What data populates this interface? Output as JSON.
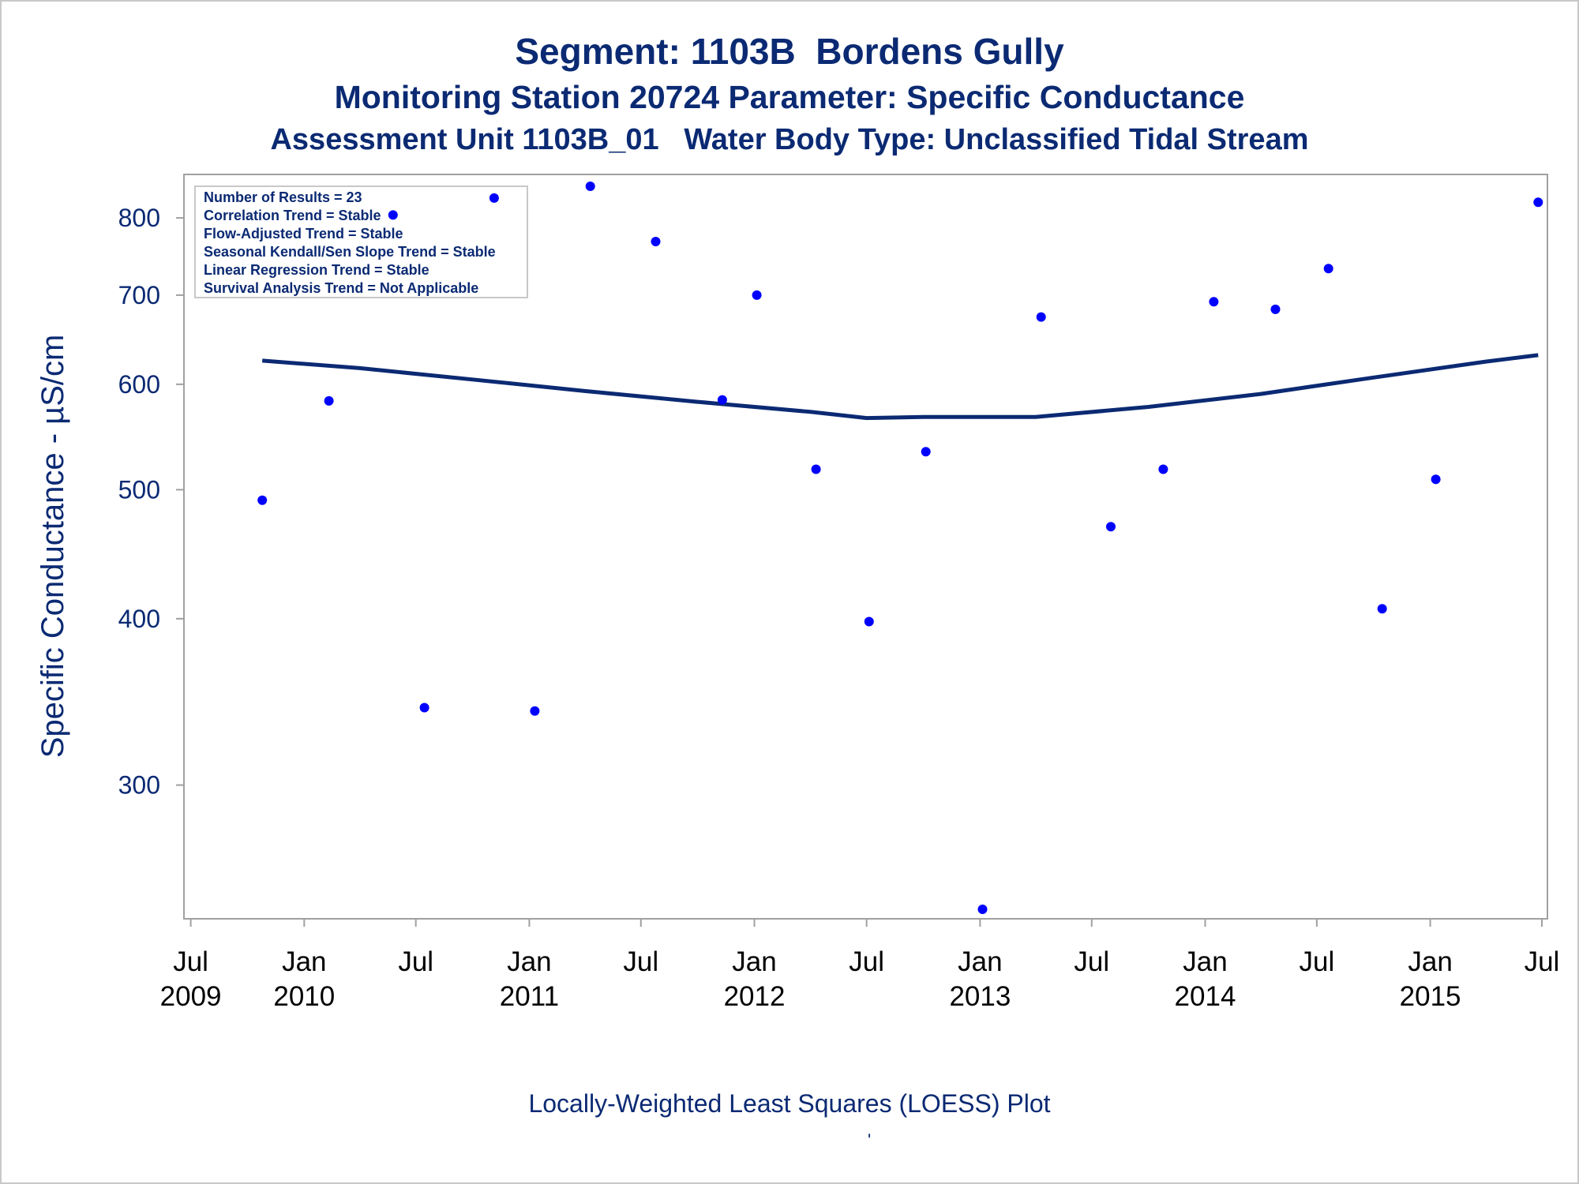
{
  "titles": {
    "line1": "Segment: 1103B  Bordens Gully",
    "line2": "Monitoring Station 20724 Parameter: Specific Conductance",
    "line3": "Assessment Unit 1103B_01   Water Body Type: Unclassified Tidal Stream"
  },
  "footer": "Locally-Weighted Least Squares (LOESS) Plot",
  "footer_mark": "'",
  "stats_box": [
    "Number of Results = 23",
    "Correlation Trend = Stable",
    "Flow-Adjusted Trend = Stable",
    "Seasonal Kendall/Sen Slope Trend = Stable",
    "Linear Regression Trend = Stable",
    "Survival Analysis Trend = Not Applicable"
  ],
  "colors": {
    "text": "#0b2a73",
    "points": "#0000ff",
    "loess": "#0b2a73",
    "axis": "#a0a0a0"
  },
  "chart_data": {
    "type": "scatter",
    "ylabel": "Specific Conductance -  µS/cm",
    "xlabel": "",
    "y_scale": "log",
    "ylim": [
      242,
      845
    ],
    "xlim": [
      "2009-06-20",
      "2015-07-10"
    ],
    "y_ticks": [
      300,
      400,
      500,
      600,
      700,
      800
    ],
    "x_ticks": [
      {
        "date": "2009-07-01",
        "label1": "Jul",
        "label2": "2009"
      },
      {
        "date": "2010-01-01",
        "label1": "Jan",
        "label2": "2010"
      },
      {
        "date": "2010-07-01",
        "label1": "Jul",
        "label2": ""
      },
      {
        "date": "2011-01-01",
        "label1": "Jan",
        "label2": "2011"
      },
      {
        "date": "2011-07-01",
        "label1": "Jul",
        "label2": ""
      },
      {
        "date": "2012-01-01",
        "label1": "Jan",
        "label2": "2012"
      },
      {
        "date": "2012-07-01",
        "label1": "Jul",
        "label2": ""
      },
      {
        "date": "2013-01-01",
        "label1": "Jan",
        "label2": "2013"
      },
      {
        "date": "2013-07-01",
        "label1": "Jul",
        "label2": ""
      },
      {
        "date": "2014-01-01",
        "label1": "Jan",
        "label2": "2014"
      },
      {
        "date": "2014-07-01",
        "label1": "Jul",
        "label2": ""
      },
      {
        "date": "2015-01-01",
        "label1": "Jan",
        "label2": "2015"
      },
      {
        "date": "2015-07-01",
        "label1": "Jul",
        "label2": ""
      }
    ],
    "series": [
      {
        "type": "scatter",
        "points": [
          {
            "x": "2009-10-25",
            "y": 491
          },
          {
            "x": "2010-02-10",
            "y": 583
          },
          {
            "x": "2010-05-25",
            "y": 804
          },
          {
            "x": "2010-07-15",
            "y": 343
          },
          {
            "x": "2010-11-05",
            "y": 828
          },
          {
            "x": "2011-01-10",
            "y": 341
          },
          {
            "x": "2011-04-10",
            "y": 845
          },
          {
            "x": "2011-07-25",
            "y": 768
          },
          {
            "x": "2011-11-10",
            "y": 584
          },
          {
            "x": "2012-01-05",
            "y": 700
          },
          {
            "x": "2012-04-10",
            "y": 518
          },
          {
            "x": "2012-07-05",
            "y": 398
          },
          {
            "x": "2012-10-05",
            "y": 534
          },
          {
            "x": "2013-01-05",
            "y": 242
          },
          {
            "x": "2013-04-10",
            "y": 674
          },
          {
            "x": "2013-08-01",
            "y": 469
          },
          {
            "x": "2013-10-25",
            "y": 518
          },
          {
            "x": "2014-01-15",
            "y": 692
          },
          {
            "x": "2014-04-25",
            "y": 683
          },
          {
            "x": "2014-07-20",
            "y": 733
          },
          {
            "x": "2014-10-15",
            "y": 407
          },
          {
            "x": "2015-01-10",
            "y": 509
          },
          {
            "x": "2015-06-25",
            "y": 822
          }
        ]
      },
      {
        "type": "line",
        "points": [
          {
            "x": "2009-10-25",
            "y": 625
          },
          {
            "x": "2010-04-01",
            "y": 617
          },
          {
            "x": "2010-10-01",
            "y": 605
          },
          {
            "x": "2011-04-01",
            "y": 593
          },
          {
            "x": "2011-10-01",
            "y": 582
          },
          {
            "x": "2012-04-01",
            "y": 572
          },
          {
            "x": "2012-07-01",
            "y": 566
          },
          {
            "x": "2012-10-01",
            "y": 567
          },
          {
            "x": "2013-04-01",
            "y": 567
          },
          {
            "x": "2013-10-01",
            "y": 577
          },
          {
            "x": "2014-04-01",
            "y": 590
          },
          {
            "x": "2014-10-01",
            "y": 607
          },
          {
            "x": "2015-04-01",
            "y": 624
          },
          {
            "x": "2015-06-25",
            "y": 631
          }
        ]
      }
    ]
  }
}
